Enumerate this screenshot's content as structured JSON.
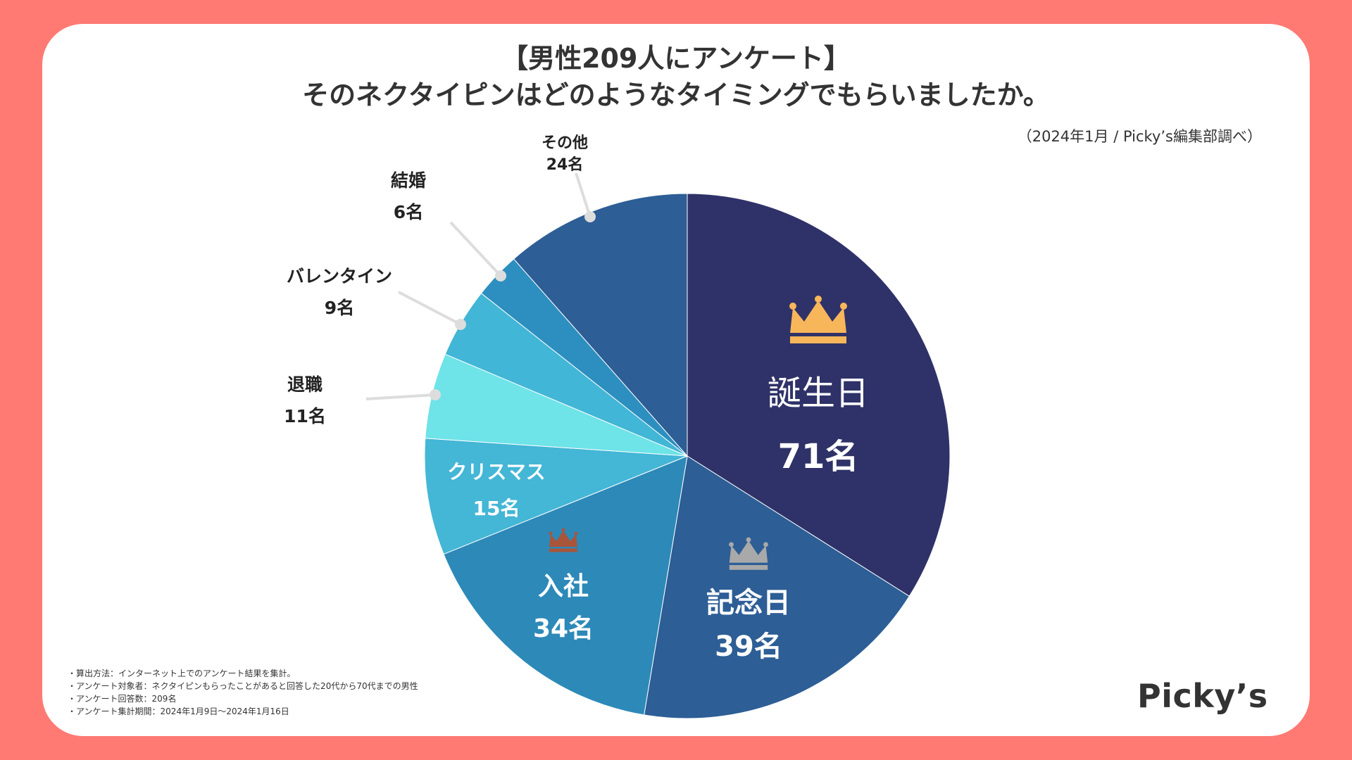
{
  "title_line1": "【男性209人にアンケート】",
  "title_line2": "そのネクタイピンはどのようなタイミングでもらいましたか。",
  "source": "（2024年1月 / Picky’s編集部調べ）",
  "unit": "名",
  "notes": [
    "算出方法：インターネット上でのアンケート結果を集計。",
    "アンケート対象者：ネクタイピンもらったことがあると回答した20代から70代までの男性",
    "アンケート回答数：209名",
    "アンケート集計期間：2024年1月9日〜2024年1月16日"
  ],
  "logo": "Picky’s",
  "colors": {
    "background": "#ff7a73",
    "gold_crown": "#f8b65b",
    "silver_crown": "#a9a9a9",
    "bronze_crown": "#a9553a"
  },
  "chart_data": {
    "type": "pie",
    "title": "そのネクタイピンはどのようなタイミングでもらいましたか。",
    "total": 209,
    "start": "12 o'clock, clockwise",
    "slices": [
      {
        "label": "誕生日",
        "value": 71,
        "display": "71名",
        "color": "#2f3268",
        "rank": 1
      },
      {
        "label": "記念日",
        "value": 39,
        "display": "39名",
        "color": "#2d5e95",
        "rank": 2
      },
      {
        "label": "入社",
        "value": 34,
        "display": "34名",
        "color": "#2d89b8",
        "rank": 3
      },
      {
        "label": "クリスマス",
        "value": 15,
        "display": "15名",
        "color": "#44b6d6"
      },
      {
        "label": "退職",
        "value": 11,
        "display": "11名",
        "color": "#6ee3e8"
      },
      {
        "label": "バレンタイン",
        "value": 9,
        "display": "9名",
        "color": "#42b6d6"
      },
      {
        "label": "結婚",
        "value": 6,
        "display": "6名",
        "color": "#2d8fbf"
      },
      {
        "label": "その他",
        "value": 24,
        "display": "24名",
        "color": "#2d5e95"
      }
    ]
  }
}
